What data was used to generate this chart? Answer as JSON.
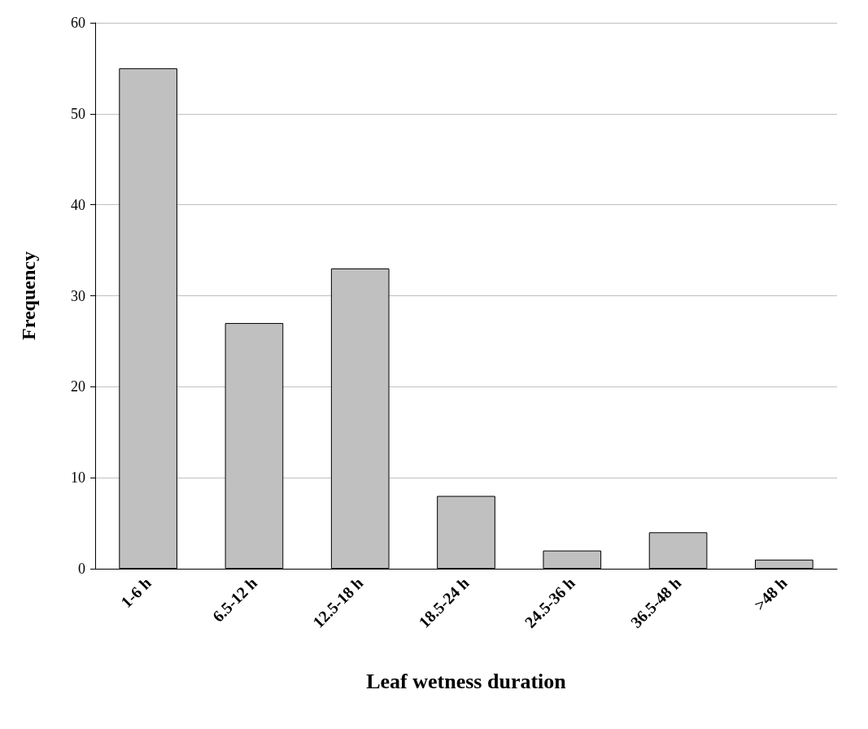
{
  "chart_data": {
    "type": "bar",
    "xlabel": "Leaf wetness duration",
    "ylabel": "Frequency",
    "categories": [
      "1-6 h",
      "6.5-12 h",
      "12.5-18 h",
      "18.5-24 h",
      "24.5-36 h",
      "36.5-48 h",
      ">48 h"
    ],
    "values": [
      55,
      27,
      33,
      8,
      2,
      4,
      1
    ],
    "color": "#c0c0c0",
    "ylim": [
      0,
      60
    ],
    "yticks": [
      0,
      10,
      20,
      30,
      40,
      50,
      60
    ],
    "grid": "y"
  }
}
